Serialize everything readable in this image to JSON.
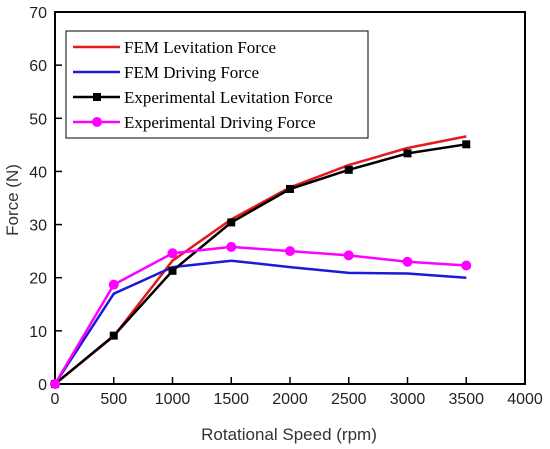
{
  "chart_data": {
    "type": "line",
    "xlabel": "Rotational Speed (rpm)",
    "ylabel": "Force (N)",
    "xlim": [
      0,
      4000
    ],
    "ylim": [
      0,
      70
    ],
    "x_ticks": [
      0,
      500,
      1000,
      1500,
      2000,
      2500,
      3000,
      3500,
      4000
    ],
    "y_ticks": [
      0,
      10,
      20,
      30,
      40,
      50,
      60,
      70
    ],
    "grid": false,
    "legend_position": "top-left",
    "series": [
      {
        "name": "FEM Levitation Force",
        "color": "#e8191c",
        "marker": "none",
        "x": [
          0,
          500,
          1000,
          1500,
          2000,
          2500,
          3000,
          3500
        ],
        "y": [
          0,
          9.0,
          23.2,
          31.0,
          37.0,
          41.2,
          44.4,
          46.6
        ]
      },
      {
        "name": "FEM Driving Force",
        "color": "#1b1bd6",
        "marker": "none",
        "x": [
          0,
          500,
          1000,
          1500,
          2000,
          2500,
          3000,
          3500
        ],
        "y": [
          0,
          17.0,
          22.0,
          23.2,
          22.0,
          20.9,
          20.8,
          20.0
        ]
      },
      {
        "name": "Experimental Levitation Force",
        "color": "#000000",
        "marker": "square",
        "x": [
          0,
          500,
          1000,
          1500,
          2000,
          2500,
          3000,
          3500
        ],
        "y": [
          0,
          9.1,
          21.3,
          30.4,
          36.7,
          40.3,
          43.4,
          45.1
        ]
      },
      {
        "name": "Experimental Driving Force",
        "color": "#ff00ff",
        "marker": "circle",
        "x": [
          0,
          500,
          1000,
          1500,
          2000,
          2500,
          3000,
          3500
        ],
        "y": [
          0,
          18.7,
          24.6,
          25.8,
          25.0,
          24.2,
          23.0,
          22.3
        ]
      }
    ]
  }
}
